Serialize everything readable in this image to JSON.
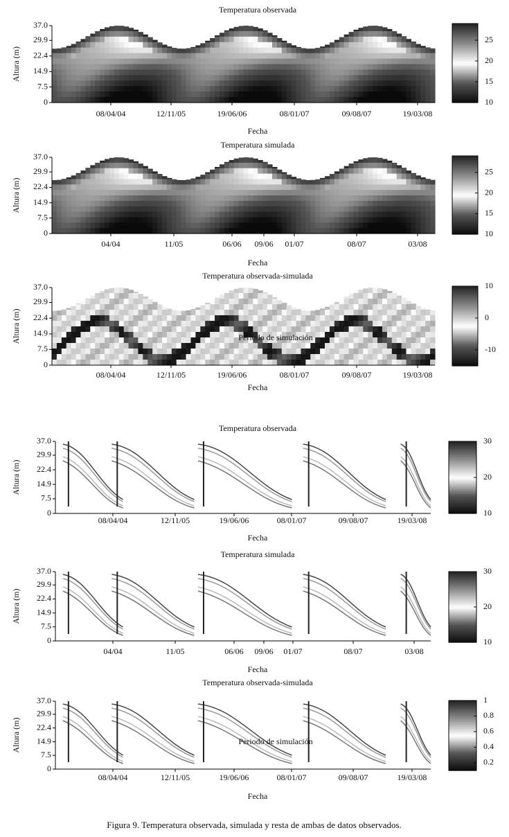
{
  "caption": "Figura 9. Temperatura observada, simulada y resta de ambas de datos observados.",
  "chart_data": [
    {
      "type": "heatmap",
      "title": "Temperatura observada",
      "xlabel": "Fecha",
      "ylabel": "Altura (m)",
      "xticks": [
        "08/04/04",
        "12/11/05",
        "19/06/06",
        "08/01/07",
        "09/08/07",
        "19/03/08"
      ],
      "ylim": [
        0,
        37
      ],
      "yticks": [
        0,
        7.5,
        14.9,
        22.4,
        29.9,
        {
          "value": 37,
          "label": "37.0"
        }
      ],
      "clim": [
        10,
        29
      ],
      "cticks": [
        10,
        15,
        20,
        25
      ]
    },
    {
      "type": "heatmap",
      "title": "Temperatura simulada",
      "xlabel": "Fecha",
      "ylabel": "Altura (m)",
      "xticks": [
        "04/04",
        "11/05",
        "06/06",
        "09/06",
        "01/07",
        "08/07",
        "03/08"
      ],
      "ylim": [
        0,
        37
      ],
      "yticks": [
        0,
        7.5,
        14.9,
        22.4,
        29.9,
        {
          "value": 37,
          "label": "37.0"
        }
      ],
      "clim": [
        10,
        29
      ],
      "cticks": [
        10,
        15,
        20,
        25
      ]
    },
    {
      "type": "heatmap",
      "title": "Temperatura observada-simulada",
      "xlabel": "Fecha",
      "ylabel": "Altura (m)",
      "annotation": "Periodo de simulación",
      "xticks": [
        "08/04/04",
        "12/11/05",
        "19/06/06",
        "08/01/07",
        "09/08/07",
        "19/03/08"
      ],
      "ylim": [
        0,
        37
      ],
      "yticks": [
        0,
        7.5,
        14.9,
        22.4,
        29.9,
        {
          "value": 37,
          "label": "37.0"
        }
      ],
      "clim": [
        -15,
        10
      ],
      "cticks": [
        -10,
        0,
        10
      ]
    },
    {
      "type": "contour",
      "title": "Temperatura observada",
      "xlabel": "Fecha",
      "ylabel": "Altura (m)",
      "xticks": [
        "08/04/04",
        "12/11/05",
        "19/06/06",
        "08/01/07",
        "09/08/07",
        "19/03/08"
      ],
      "ylim": [
        0,
        37
      ],
      "yticks": [
        0,
        7.5,
        14.9,
        22.4,
        29.9,
        {
          "value": 37,
          "label": "37.0"
        }
      ],
      "clim": [
        10,
        30
      ],
      "cticks": [
        10,
        20,
        30
      ]
    },
    {
      "type": "contour",
      "title": "Temperatura simulada",
      "xlabel": "Fecha",
      "ylabel": "Altura (m)",
      "xticks": [
        "04/04",
        "11/05",
        "06/06",
        "09/06",
        "01/07",
        "08/07",
        "03/08"
      ],
      "ylim": [
        0,
        37
      ],
      "yticks": [
        0,
        7.5,
        14.9,
        22.4,
        29.9,
        {
          "value": 37,
          "label": "37.0"
        }
      ],
      "clim": [
        10,
        30
      ],
      "cticks": [
        10,
        20,
        30
      ]
    },
    {
      "type": "contour",
      "title": "Temperatura observada-simulada",
      "xlabel": "Fecha",
      "ylabel": "Altura (m)",
      "annotation": "Periodo de simulación",
      "xticks": [
        "08/04/04",
        "12/11/05",
        "19/06/06",
        "08/01/07",
        "09/08/07",
        "19/03/08"
      ],
      "ylim": [
        0,
        37
      ],
      "yticks": [
        0,
        7.5,
        14.9,
        22.4,
        29.9,
        {
          "value": 37,
          "label": "37.0"
        }
      ],
      "clim": [
        0.1,
        1
      ],
      "cticks": [
        0.2,
        0.4,
        0.6,
        0.8,
        1
      ]
    }
  ]
}
